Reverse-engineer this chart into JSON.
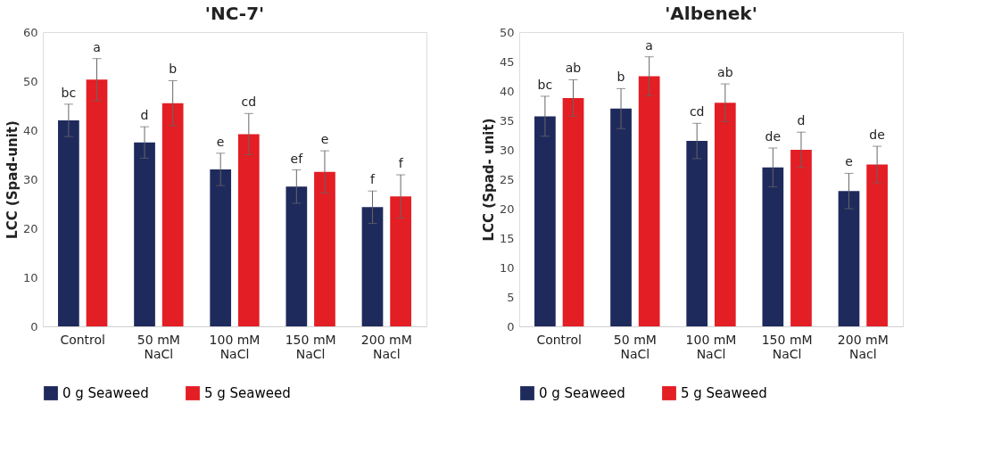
{
  "chart_data": [
    {
      "type": "bar",
      "title": "'NC-7'",
      "ylabel": "LCC (Spad-unit)",
      "categories": [
        "Control",
        "50 mM NaCl",
        "100 mM NaCl",
        "150 mM NaCl",
        "200 mM Nacl"
      ],
      "series": [
        {
          "name": "0 g Seaweed",
          "color": "#1f2a5c",
          "values": [
            42,
            37.5,
            32,
            28.5,
            24.3
          ],
          "errors": [
            3.3,
            3.2,
            3.3,
            3.4,
            3.3
          ]
        },
        {
          "name": "5 g Seaweed",
          "color": "#e31e24",
          "values": [
            50.3,
            45.5,
            39.2,
            31.5,
            26.5
          ],
          "errors": [
            4.3,
            4.6,
            4.2,
            4.3,
            4.4
          ]
        }
      ],
      "ylim": [
        0,
        60
      ],
      "yticks": [
        0,
        10,
        20,
        30,
        40,
        50,
        60
      ],
      "grid": false,
      "legend": "bottom",
      "annotations": [
        "bc",
        "a",
        "d",
        "b",
        "e",
        "cd",
        "ef",
        "e",
        "f",
        "f"
      ]
    },
    {
      "type": "bar",
      "title": "'Albenek'",
      "ylabel": "LCC (Spad- unit)",
      "categories": [
        "Control",
        "50 mM NaCl",
        "100 mM NaCl",
        "150 mM NaCl",
        "200 mM Nacl"
      ],
      "series": [
        {
          "name": "0 g Seaweed",
          "color": "#1f2a5c",
          "values": [
            35.7,
            37,
            31.5,
            27,
            23
          ],
          "errors": [
            3.4,
            3.4,
            3,
            3.3,
            3
          ]
        },
        {
          "name": "5 g Seaweed",
          "color": "#e31e24",
          "values": [
            38.8,
            42.5,
            38,
            30,
            27.5
          ],
          "errors": [
            3.1,
            3.3,
            3.2,
            3,
            3.1
          ]
        }
      ],
      "ylim": [
        0,
        50
      ],
      "yticks": [
        0,
        5,
        10,
        15,
        20,
        25,
        30,
        35,
        40,
        45,
        50
      ],
      "grid": false,
      "legend": "bottom",
      "annotations": [
        "bc",
        "ab",
        "b",
        "a",
        "cd",
        "ab",
        "de",
        "d",
        "e",
        "de"
      ]
    }
  ]
}
